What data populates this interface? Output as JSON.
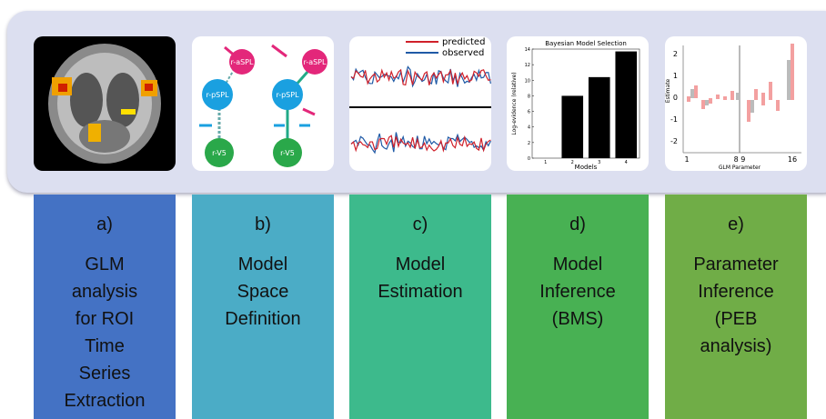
{
  "panels": [
    {
      "letter": "a)",
      "lines": [
        "GLM",
        "analysis",
        "for ROI",
        "Time",
        "Series",
        "Extraction"
      ],
      "color": "#4472c4"
    },
    {
      "letter": "b)",
      "lines": [
        "Model",
        "Space",
        "Definition"
      ],
      "color": "#4bacc6"
    },
    {
      "letter": "c)",
      "lines": [
        "Model",
        "Estimation"
      ],
      "color": "#3dba8c"
    },
    {
      "letter": "d)",
      "lines": [
        "Model",
        "Inference",
        "(BMS)"
      ],
      "color": "#48b153"
    },
    {
      "letter": "e)",
      "lines": [
        "Parameter",
        "Inference",
        "(PEB",
        "analysis)"
      ],
      "color": "#70ad47"
    }
  ],
  "thumbnails": {
    "model_nodes": [
      "r-aSPL",
      "r-pSPL",
      "r-V5"
    ],
    "legend": [
      {
        "name": "predicted",
        "color": "#d0202a"
      },
      {
        "name": "observed",
        "color": "#1f5aa6"
      }
    ],
    "bms": {
      "title": "Bayesian Model Selection",
      "ylabel": "Log-evidence (relative)",
      "xlabel": "Models",
      "categories": [
        "1",
        "2",
        "3",
        "4"
      ],
      "values": [
        0,
        8,
        10.4,
        13.7
      ],
      "ylim": [
        0,
        14
      ],
      "yticks": [
        0,
        2,
        4,
        6,
        8,
        10,
        12,
        14
      ]
    },
    "peb": {
      "ylabel": "Estimate",
      "xlabel": "GLM Parameter",
      "yticks": [
        2,
        1,
        0,
        -1,
        -2
      ],
      "xticks": [
        "1",
        "8 9",
        "16"
      ]
    }
  }
}
